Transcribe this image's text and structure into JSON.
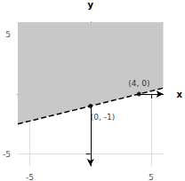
{
  "chart_data": {
    "type": "line",
    "xlabel": "x",
    "ylabel": "y",
    "xlim": [
      -6,
      6
    ],
    "ylim": [
      -6,
      6
    ],
    "xticks": [
      -5,
      5
    ],
    "yticks": [
      -5,
      5
    ],
    "grid": true,
    "series": [
      {
        "type": "area",
        "color": "#c8c8c8",
        "x": [
          -6,
          6
        ],
        "values": [
          -2.5,
          0.5
        ]
      },
      {
        "type": "line",
        "color": "#000000",
        "line_style": "dashed",
        "x": [
          -6,
          6
        ],
        "values": [
          -2.5,
          0.5
        ]
      },
      {
        "type": "scatter",
        "color": "#000000",
        "marker": "circle",
        "x": [
          0,
          4
        ],
        "values": [
          -1,
          0
        ],
        "data_labels": true,
        "value_labels": [
          "(0, -1)",
          "(4, 0)"
        ]
      }
    ]
  }
}
